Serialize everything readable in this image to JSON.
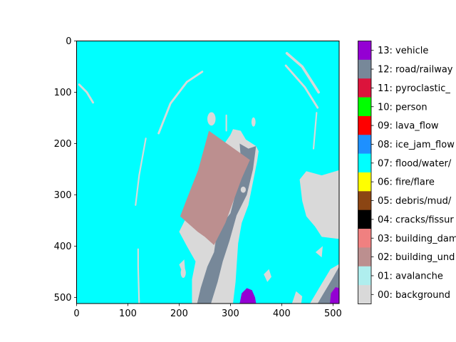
{
  "chart_data": {
    "type": "heatmap",
    "title": "",
    "xlabel": "",
    "ylabel": "",
    "xlim": [
      0,
      512
    ],
    "ylim": [
      512,
      0
    ],
    "x_ticks": [
      "0",
      "100",
      "200",
      "300",
      "400",
      "500"
    ],
    "y_ticks": [
      "0",
      "100",
      "200",
      "300",
      "400",
      "500"
    ],
    "grid": false,
    "colorbar_position": "right",
    "classes": [
      {
        "label": "00: background",
        "color": "#d9d9d9"
      },
      {
        "label": "01: avalanche",
        "color": "#afeeee"
      },
      {
        "label": "02: building_und",
        "color": "#bc8f8f"
      },
      {
        "label": "03: building_dam",
        "color": "#f08080"
      },
      {
        "label": "04: cracks/fissur",
        "color": "#000000"
      },
      {
        "label": "05: debris/mud/",
        "color": "#8b4513"
      },
      {
        "label": "06: fire/flare",
        "color": "#ffff00"
      },
      {
        "label": "07: flood/water/",
        "color": "#00ffff"
      },
      {
        "label": "08: ice_jam_flow",
        "color": "#1e90ff"
      },
      {
        "label": "09: lava_flow",
        "color": "#ff0000"
      },
      {
        "label": "10: person",
        "color": "#00ff00"
      },
      {
        "label": "11: pyroclastic_",
        "color": "#dc143c"
      },
      {
        "label": "12: road/railway",
        "color": "#778899"
      },
      {
        "label": "13: vehicle",
        "color": "#9400d3"
      }
    ],
    "regions": [
      {
        "class": "07: flood/water/",
        "shape": "poly",
        "points": [
          [
            0,
            0
          ],
          [
            512,
            0
          ],
          [
            512,
            512
          ],
          [
            0,
            512
          ]
        ]
      },
      {
        "class": "00: background",
        "shape": "poly",
        "points": [
          [
            305,
            172
          ],
          [
            320,
            175
          ],
          [
            330,
            192
          ],
          [
            350,
            205
          ],
          [
            355,
            215
          ],
          [
            352,
            235
          ],
          [
            345,
            270
          ],
          [
            335,
            320
          ],
          [
            322,
            355
          ],
          [
            315,
            395
          ],
          [
            312,
            440
          ],
          [
            310,
            470
          ],
          [
            305,
            512
          ],
          [
            225,
            512
          ],
          [
            225,
            465
          ],
          [
            232,
            430
          ],
          [
            215,
            400
          ],
          [
            200,
            372
          ],
          [
            222,
            328
          ],
          [
            250,
            262
          ],
          [
            278,
            215
          ],
          [
            300,
            183
          ]
        ]
      },
      {
        "class": "12: road/railway",
        "shape": "poly",
        "points": [
          [
            318,
            200
          ],
          [
            335,
            210
          ],
          [
            350,
            205
          ],
          [
            344,
            250
          ],
          [
            332,
            300
          ],
          [
            312,
            340
          ],
          [
            298,
            390
          ],
          [
            285,
            430
          ],
          [
            275,
            470
          ],
          [
            262,
            512
          ],
          [
            235,
            512
          ],
          [
            242,
            482
          ],
          [
            255,
            440
          ],
          [
            268,
            412
          ],
          [
            272,
            385
          ],
          [
            280,
            362
          ],
          [
            300,
            336
          ],
          [
            312,
            290
          ],
          [
            322,
            252
          ]
        ]
      },
      {
        "class": "02: building_und",
        "shape": "poly",
        "points": [
          [
            258,
            175
          ],
          [
            338,
            232
          ],
          [
            322,
            268
          ],
          [
            290,
            355
          ],
          [
            268,
            398
          ],
          [
            250,
            382
          ],
          [
            236,
            372
          ],
          [
            202,
            342
          ],
          [
            215,
            308
          ],
          [
            237,
            252
          ]
        ]
      },
      {
        "class": "00: background",
        "shape": "poly",
        "points": [
          [
            512,
            252
          ],
          [
            478,
            262
          ],
          [
            448,
            254
          ],
          [
            435,
            270
          ],
          [
            440,
            312
          ],
          [
            448,
            342
          ],
          [
            465,
            362
          ],
          [
            478,
            382
          ],
          [
            512,
            386
          ]
        ]
      },
      {
        "class": "00: background",
        "shape": "poly",
        "points": [
          [
            512,
            435
          ],
          [
            495,
            445
          ],
          [
            480,
            470
          ],
          [
            455,
            512
          ],
          [
            512,
            512
          ]
        ]
      },
      {
        "class": "12: road/railway",
        "shape": "poly",
        "points": [
          [
            512,
            440
          ],
          [
            498,
            465
          ],
          [
            480,
            495
          ],
          [
            470,
            512
          ],
          [
            512,
            512
          ]
        ]
      },
      {
        "class": "00: background",
        "shape": "poly",
        "points": [
          [
            420,
            512
          ],
          [
            428,
            488
          ],
          [
            440,
            498
          ],
          [
            438,
            512
          ]
        ]
      },
      {
        "class": "00: background",
        "shape": "poly",
        "points": [
          [
            365,
            455
          ],
          [
            375,
            445
          ],
          [
            380,
            460
          ],
          [
            372,
            470
          ]
        ]
      },
      {
        "class": "00: background",
        "shape": "poly",
        "points": [
          [
            466,
            412
          ],
          [
            480,
            400
          ],
          [
            478,
            422
          ]
        ]
      },
      {
        "class": "00: background",
        "shape": "poly",
        "points": [
          [
            200,
            436
          ],
          [
            210,
            426
          ],
          [
            212,
            452
          ],
          [
            205,
            448
          ]
        ]
      },
      {
        "class": "00: background",
        "shape": "poly",
        "points": [
          [
            218,
            370
          ],
          [
            222,
            376
          ],
          [
            216,
            380
          ]
        ]
      },
      {
        "class": "00: background",
        "shape": "ellipse",
        "cx": 263,
        "cy": 152,
        "rx": 8,
        "ry": 13
      },
      {
        "class": "00: background",
        "shape": "ellipse",
        "cx": 208,
        "cy": 452,
        "rx": 5,
        "ry": 10
      },
      {
        "class": "00: background",
        "shape": "ellipse",
        "cx": 345,
        "cy": 158,
        "rx": 4,
        "ry": 9
      },
      {
        "class": "00: background",
        "shape": "ellipse",
        "cx": 325,
        "cy": 290,
        "rx": 5,
        "ry": 6
      },
      {
        "class": "00: background",
        "shape": "line",
        "points": [
          [
            160,
            180
          ],
          [
            183,
            122
          ],
          [
            215,
            80
          ],
          [
            245,
            60
          ]
        ],
        "width": 4
      },
      {
        "class": "00: background",
        "shape": "line",
        "points": [
          [
            115,
            320
          ],
          [
            122,
            262
          ],
          [
            135,
            190
          ]
        ],
        "width": 3
      },
      {
        "class": "00: background",
        "shape": "line",
        "points": [
          [
            122,
            512
          ],
          [
            120,
            440
          ],
          [
            120,
            406
          ]
        ],
        "width": 3
      },
      {
        "class": "00: background",
        "shape": "line",
        "points": [
          [
            5,
            85
          ],
          [
            20,
            100
          ],
          [
            32,
            120
          ]
        ],
        "width": 4
      },
      {
        "class": "00: background",
        "shape": "line",
        "points": [
          [
            410,
            24
          ],
          [
            440,
            50
          ],
          [
            472,
            100
          ]
        ],
        "width": 5
      },
      {
        "class": "00: background",
        "shape": "line",
        "points": [
          [
            408,
            48
          ],
          [
            445,
            90
          ],
          [
            470,
            130
          ]
        ],
        "width": 4
      },
      {
        "class": "00: background",
        "shape": "line",
        "points": [
          [
            468,
            140
          ],
          [
            462,
            210
          ]
        ],
        "width": 3
      },
      {
        "class": "00: background",
        "shape": "line",
        "points": [
          [
            292,
            145
          ],
          [
            292,
            175
          ]
        ],
        "width": 3
      },
      {
        "class": "13: vehicle",
        "shape": "poly",
        "points": [
          [
            318,
            512
          ],
          [
            322,
            492
          ],
          [
            332,
            482
          ],
          [
            342,
            486
          ],
          [
            348,
            500
          ],
          [
            350,
            512
          ]
        ]
      },
      {
        "class": "13: vehicle",
        "shape": "poly",
        "points": [
          [
            494,
            512
          ],
          [
            496,
            492
          ],
          [
            505,
            480
          ],
          [
            512,
            482
          ],
          [
            512,
            512
          ]
        ]
      }
    ]
  }
}
